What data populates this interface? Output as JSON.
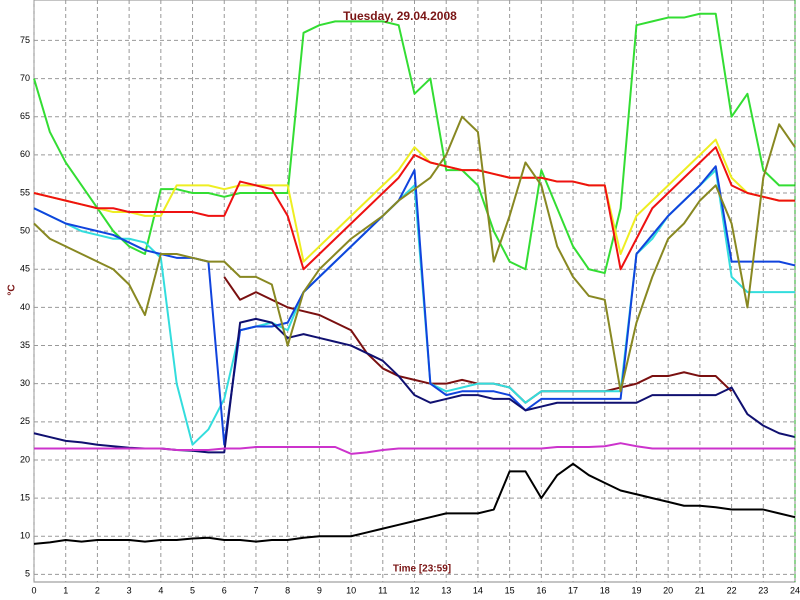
{
  "chart_data": {
    "type": "line",
    "title": "Tuesday, 29.04.2008",
    "xlabel": "Time [23:59]",
    "ylabel": "°C",
    "xlim": [
      0,
      24
    ],
    "ylim": [
      4,
      80.3
    ],
    "xticks": [
      0,
      1,
      2,
      3,
      4,
      5,
      6,
      7,
      8,
      9,
      10,
      11,
      12,
      13,
      14,
      15,
      16,
      17,
      18,
      19,
      20,
      21,
      22,
      23,
      24
    ],
    "yticks": [
      5,
      10,
      15,
      20,
      25,
      30,
      35,
      40,
      45,
      50,
      55,
      60,
      65,
      70,
      75
    ],
    "grid": true,
    "x": [
      0,
      0.5,
      1,
      1.5,
      2,
      2.5,
      3,
      3.5,
      4,
      4.5,
      5,
      5.5,
      6,
      6.5,
      7,
      7.5,
      8,
      8.5,
      9,
      9.5,
      10,
      10.5,
      11,
      11.5,
      12,
      12.5,
      13,
      13.5,
      14,
      14.5,
      15,
      15.5,
      16,
      16.5,
      17,
      17.5,
      18,
      18.5,
      19,
      19.5,
      20,
      20.5,
      21,
      21.5,
      22,
      22.5,
      23,
      23.5,
      24
    ],
    "series": [
      {
        "color": "#33dd33",
        "values": [
          70,
          63,
          59,
          56,
          53,
          50,
          48,
          47,
          55.5,
          55.5,
          55,
          55,
          54.5,
          55,
          55,
          55,
          55,
          76,
          77,
          77.5,
          77.5,
          77.5,
          77.5,
          77,
          68,
          70,
          58,
          58,
          56,
          50,
          46,
          45,
          58,
          53,
          48,
          45,
          44.5,
          53,
          77,
          77.5,
          78,
          78,
          78.5,
          78.5,
          65,
          68,
          58,
          56,
          56
        ]
      },
      {
        "color": "#eeee22",
        "values": [
          55,
          54.5,
          54,
          53.5,
          53,
          52.5,
          52.5,
          52,
          52,
          56,
          56,
          56,
          55.5,
          56,
          56,
          56,
          56,
          46,
          48,
          50,
          52,
          54,
          56,
          58,
          61,
          59,
          58.5,
          58,
          58,
          57.5,
          57,
          57,
          57,
          56.5,
          56.5,
          56,
          56,
          47,
          52,
          54,
          56,
          58,
          60,
          62,
          57,
          55,
          54.5,
          54,
          54
        ]
      },
      {
        "color": "#ee1111",
        "values": [
          55,
          54.5,
          54,
          53.5,
          53,
          53,
          52.5,
          52.5,
          52.5,
          52.5,
          52.5,
          52,
          52,
          56.5,
          56,
          55.5,
          52,
          45,
          47,
          49,
          51,
          53,
          55,
          57,
          60,
          59,
          58.5,
          58,
          58,
          57.5,
          57,
          57,
          57,
          56.5,
          56.5,
          56,
          56,
          45,
          49,
          53,
          55,
          57,
          59,
          61,
          56,
          55,
          54.5,
          54,
          54
        ]
      },
      {
        "color": "#7a1010",
        "values": [
          null,
          null,
          null,
          null,
          null,
          null,
          null,
          null,
          null,
          null,
          null,
          null,
          44,
          41,
          42,
          41,
          40,
          39.5,
          39,
          38,
          37,
          34,
          32,
          31,
          30.5,
          30,
          30,
          30.5,
          30,
          30,
          29.5,
          27.5,
          29,
          29,
          29,
          29,
          29,
          29.5,
          30,
          31,
          31,
          31.5,
          31,
          31,
          29,
          null,
          null,
          null,
          null
        ]
      },
      {
        "color": "#33dddd",
        "values": [
          53,
          52,
          51,
          50,
          49.5,
          49,
          49,
          48.5,
          46.5,
          30,
          22,
          24,
          28,
          37,
          37.5,
          38,
          37,
          42,
          44,
          46,
          48,
          50,
          52,
          54,
          56,
          30,
          29,
          29.5,
          30,
          30,
          29.5,
          27.5,
          29,
          29,
          29,
          29,
          29,
          29,
          47,
          49,
          52,
          54,
          56,
          58,
          44,
          42,
          42,
          42,
          42
        ]
      },
      {
        "color": "#1144dd",
        "values": [
          53,
          52,
          51,
          50.5,
          50,
          49.5,
          48.5,
          47.5,
          47,
          46.5,
          46.5,
          46,
          22,
          37,
          37.5,
          37.5,
          38,
          42,
          44,
          46,
          48,
          50,
          52,
          54,
          58,
          30,
          28.5,
          29,
          29,
          29,
          28.5,
          26.5,
          28,
          28,
          28,
          28,
          28,
          28,
          47,
          49.5,
          52,
          54,
          56,
          58.5,
          46,
          46,
          46,
          46,
          45.5
        ]
      },
      {
        "color": "#101070",
        "values": [
          23.5,
          23,
          22.5,
          22.3,
          22,
          21.8,
          21.6,
          21.5,
          21.5,
          21.3,
          21.2,
          21,
          21,
          38,
          38.5,
          38,
          36,
          36.5,
          36,
          35.5,
          35,
          34,
          33,
          31,
          28.5,
          27.5,
          28,
          28.5,
          28.5,
          28,
          28,
          26.5,
          27,
          27.5,
          27.5,
          27.5,
          27.5,
          27.5,
          27.5,
          28.5,
          28.5,
          28.5,
          28.5,
          28.5,
          29.5,
          26,
          24.5,
          23.5,
          23
        ]
      },
      {
        "color": "#888822",
        "values": [
          51,
          49,
          48,
          47,
          46,
          45,
          43,
          39,
          47,
          47,
          46.5,
          46,
          46,
          44,
          44,
          43,
          35,
          42,
          45,
          47,
          49,
          50.5,
          52,
          54,
          55.5,
          57,
          60,
          65,
          63,
          46,
          52,
          59,
          56,
          48,
          44,
          41.5,
          41,
          29,
          38,
          44,
          49,
          51,
          54,
          56,
          51,
          40,
          57,
          64,
          61
        ]
      },
      {
        "color": "#cc33cc",
        "values": [
          21.5,
          21.5,
          21.5,
          21.5,
          21.5,
          21.5,
          21.5,
          21.5,
          21.5,
          21.3,
          21.3,
          21.3,
          21.5,
          21.5,
          21.7,
          21.7,
          21.7,
          21.7,
          21.7,
          21.7,
          20.8,
          21,
          21.3,
          21.5,
          21.5,
          21.5,
          21.5,
          21.5,
          21.5,
          21.5,
          21.5,
          21.5,
          21.5,
          21.7,
          21.7,
          21.7,
          21.8,
          22.2,
          21.8,
          21.5,
          21.5,
          21.5,
          21.5,
          21.5,
          21.5,
          21.5,
          21.5,
          21.5,
          21.5
        ]
      },
      {
        "color": "#000000",
        "values": [
          9,
          9.2,
          9.5,
          9.3,
          9.5,
          9.5,
          9.5,
          9.3,
          9.5,
          9.5,
          9.7,
          9.8,
          9.5,
          9.5,
          9.3,
          9.5,
          9.5,
          9.8,
          10,
          10,
          10,
          10.5,
          11,
          11.5,
          12,
          12.5,
          13,
          13,
          13,
          13.5,
          18.5,
          18.5,
          15,
          18,
          19.5,
          18,
          17,
          16,
          15.5,
          15,
          14.5,
          14,
          14,
          13.8,
          13.5,
          13.5,
          13.5,
          13,
          12.5
        ]
      }
    ]
  }
}
